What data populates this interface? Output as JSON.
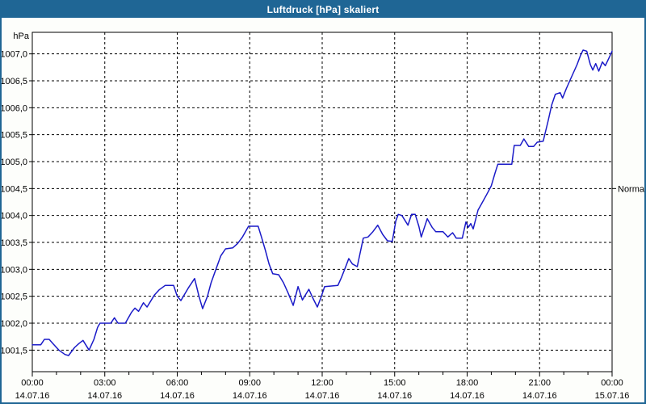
{
  "window": {
    "title": "Luftdruck [hPa] skaliert",
    "title_bar_color": "#1f6695",
    "background_color": "#fdfefb"
  },
  "chart_data": {
    "type": "line",
    "title": "Luftdruck [hPa] skaliert",
    "unit_label": "hPa",
    "grid": "dashed",
    "legend_position": "none",
    "line_color": "#1a1ac8",
    "plot_background": "#ffffff",
    "xlim_hours": [
      0,
      24
    ],
    "ylim": [
      1001.1,
      1007.4
    ],
    "x_ticks": [
      {
        "hours": 0,
        "time": "00:00",
        "date": "14.07.16"
      },
      {
        "hours": 3,
        "time": "03:00",
        "date": "14.07.16"
      },
      {
        "hours": 6,
        "time": "06:00",
        "date": "14.07.16"
      },
      {
        "hours": 9,
        "time": "09:00",
        "date": "14.07.16"
      },
      {
        "hours": 12,
        "time": "12:00",
        "date": "14.07.16"
      },
      {
        "hours": 15,
        "time": "15:00",
        "date": "14.07.16"
      },
      {
        "hours": 18,
        "time": "18:00",
        "date": "14.07.16"
      },
      {
        "hours": 21,
        "time": "21:00",
        "date": "14.07.16"
      },
      {
        "hours": 24,
        "time": "00:00",
        "date": "15.07.16"
      }
    ],
    "minor_tick_every_hours": 1,
    "y_ticks": [
      {
        "value": 1001.5,
        "label": "1001,5"
      },
      {
        "value": 1002.0,
        "label": "1002,0"
      },
      {
        "value": 1002.5,
        "label": "1002,5"
      },
      {
        "value": 1003.0,
        "label": "1003,0"
      },
      {
        "value": 1003.5,
        "label": "1003,5"
      },
      {
        "value": 1004.0,
        "label": "1004,0"
      },
      {
        "value": 1004.5,
        "label": "1004,5"
      },
      {
        "value": 1005.0,
        "label": "1005,0"
      },
      {
        "value": 1005.5,
        "label": "1005,5"
      },
      {
        "value": 1006.0,
        "label": "1006,0"
      },
      {
        "value": 1006.5,
        "label": "1006,5"
      },
      {
        "value": 1007.0,
        "label": "1007,0"
      }
    ],
    "right_marker": {
      "label": "Normal",
      "value": 1004.5
    },
    "series": [
      {
        "name": "Luftdruck",
        "points": [
          [
            0.0,
            1001.6
          ],
          [
            0.35,
            1001.6
          ],
          [
            0.5,
            1001.7
          ],
          [
            0.7,
            1001.7
          ],
          [
            0.9,
            1001.6
          ],
          [
            1.1,
            1001.5
          ],
          [
            1.35,
            1001.42
          ],
          [
            1.5,
            1001.4
          ],
          [
            1.75,
            1001.55
          ],
          [
            1.95,
            1001.63
          ],
          [
            2.1,
            1001.68
          ],
          [
            2.35,
            1001.5
          ],
          [
            2.55,
            1001.7
          ],
          [
            2.7,
            1001.92
          ],
          [
            2.8,
            1002.0
          ],
          [
            3.25,
            1002.0
          ],
          [
            3.4,
            1002.1
          ],
          [
            3.55,
            1002.0
          ],
          [
            3.85,
            1002.0
          ],
          [
            4.1,
            1002.2
          ],
          [
            4.25,
            1002.28
          ],
          [
            4.4,
            1002.22
          ],
          [
            4.6,
            1002.38
          ],
          [
            4.75,
            1002.3
          ],
          [
            5.05,
            1002.52
          ],
          [
            5.25,
            1002.62
          ],
          [
            5.5,
            1002.7
          ],
          [
            5.85,
            1002.7
          ],
          [
            6.0,
            1002.5
          ],
          [
            6.15,
            1002.42
          ],
          [
            6.45,
            1002.65
          ],
          [
            6.72,
            1002.83
          ],
          [
            6.9,
            1002.5
          ],
          [
            7.05,
            1002.27
          ],
          [
            7.25,
            1002.5
          ],
          [
            7.4,
            1002.75
          ],
          [
            7.6,
            1003.0
          ],
          [
            7.8,
            1003.25
          ],
          [
            8.0,
            1003.38
          ],
          [
            8.3,
            1003.4
          ],
          [
            8.5,
            1003.48
          ],
          [
            8.7,
            1003.6
          ],
          [
            8.95,
            1003.8
          ],
          [
            9.35,
            1003.8
          ],
          [
            9.5,
            1003.58
          ],
          [
            9.65,
            1003.35
          ],
          [
            9.8,
            1003.1
          ],
          [
            9.95,
            1002.92
          ],
          [
            10.2,
            1002.9
          ],
          [
            10.4,
            1002.75
          ],
          [
            10.6,
            1002.55
          ],
          [
            10.8,
            1002.33
          ],
          [
            11.0,
            1002.68
          ],
          [
            11.18,
            1002.43
          ],
          [
            11.45,
            1002.63
          ],
          [
            11.6,
            1002.48
          ],
          [
            11.8,
            1002.3
          ],
          [
            11.95,
            1002.48
          ],
          [
            12.1,
            1002.68
          ],
          [
            12.65,
            1002.7
          ],
          [
            12.8,
            1002.85
          ],
          [
            13.0,
            1003.08
          ],
          [
            13.1,
            1003.2
          ],
          [
            13.25,
            1003.1
          ],
          [
            13.45,
            1003.05
          ],
          [
            13.7,
            1003.58
          ],
          [
            13.9,
            1003.6
          ],
          [
            14.1,
            1003.7
          ],
          [
            14.3,
            1003.82
          ],
          [
            14.5,
            1003.65
          ],
          [
            14.7,
            1003.53
          ],
          [
            14.9,
            1003.52
          ],
          [
            15.05,
            1003.9
          ],
          [
            15.15,
            1004.02
          ],
          [
            15.3,
            1004.0
          ],
          [
            15.55,
            1003.82
          ],
          [
            15.7,
            1004.02
          ],
          [
            15.85,
            1004.02
          ],
          [
            16.0,
            1003.8
          ],
          [
            16.1,
            1003.6
          ],
          [
            16.35,
            1003.94
          ],
          [
            16.55,
            1003.78
          ],
          [
            16.7,
            1003.7
          ],
          [
            17.0,
            1003.7
          ],
          [
            17.2,
            1003.6
          ],
          [
            17.4,
            1003.68
          ],
          [
            17.55,
            1003.58
          ],
          [
            17.8,
            1003.58
          ],
          [
            17.95,
            1003.88
          ],
          [
            18.05,
            1003.78
          ],
          [
            18.15,
            1003.85
          ],
          [
            18.25,
            1003.75
          ],
          [
            18.45,
            1004.1
          ],
          [
            18.6,
            1004.22
          ],
          [
            18.8,
            1004.38
          ],
          [
            19.0,
            1004.55
          ],
          [
            19.15,
            1004.78
          ],
          [
            19.27,
            1004.95
          ],
          [
            19.85,
            1004.95
          ],
          [
            19.95,
            1005.3
          ],
          [
            20.2,
            1005.3
          ],
          [
            20.35,
            1005.42
          ],
          [
            20.55,
            1005.28
          ],
          [
            20.75,
            1005.28
          ],
          [
            20.9,
            1005.36
          ],
          [
            21.15,
            1005.38
          ],
          [
            21.35,
            1005.75
          ],
          [
            21.5,
            1006.05
          ],
          [
            21.65,
            1006.25
          ],
          [
            21.85,
            1006.28
          ],
          [
            21.95,
            1006.18
          ],
          [
            22.1,
            1006.35
          ],
          [
            22.25,
            1006.5
          ],
          [
            22.4,
            1006.65
          ],
          [
            22.55,
            1006.8
          ],
          [
            22.7,
            1006.98
          ],
          [
            22.8,
            1007.07
          ],
          [
            22.95,
            1007.05
          ],
          [
            23.1,
            1006.8
          ],
          [
            23.2,
            1006.7
          ],
          [
            23.32,
            1006.82
          ],
          [
            23.45,
            1006.68
          ],
          [
            23.6,
            1006.85
          ],
          [
            23.72,
            1006.78
          ],
          [
            23.9,
            1006.95
          ],
          [
            24.0,
            1007.05
          ]
        ]
      }
    ]
  }
}
